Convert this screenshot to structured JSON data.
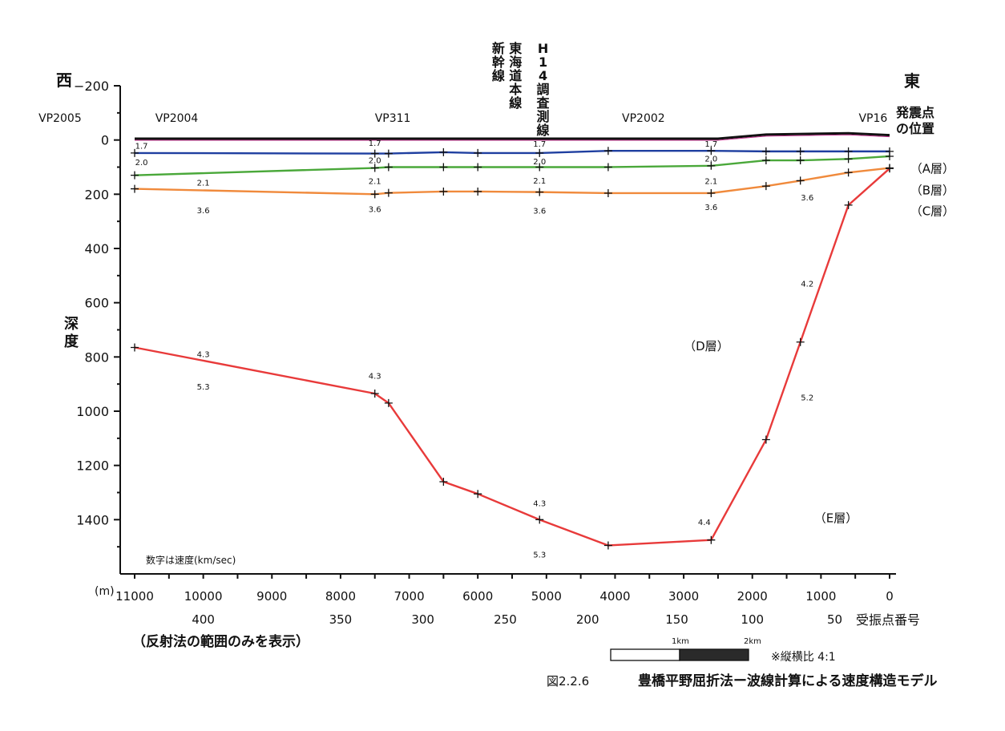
{
  "chart_data": {
    "type": "line",
    "title": "豊橋平野屈折法ー波線計算による速度構造モデル",
    "figure_number": "図2.2.6",
    "ylabel": "深度",
    "y_unit": "(m)",
    "ylim": [
      -200,
      1600
    ],
    "yticks": [
      -200,
      0,
      200,
      400,
      600,
      800,
      1000,
      1200,
      1400
    ],
    "xlim": [
      11000,
      0
    ],
    "xticks": [
      11000,
      10000,
      9000,
      8000,
      7000,
      6000,
      5000,
      4000,
      3000,
      2000,
      1000,
      0
    ],
    "receiver_ticks": [
      {
        "label": "400",
        "x": 10000
      },
      {
        "label": "350",
        "x": 8000
      },
      {
        "label": "300",
        "x": 6800
      },
      {
        "label": "250",
        "x": 5600
      },
      {
        "label": "200",
        "x": 4400
      },
      {
        "label": "150",
        "x": 3100
      },
      {
        "label": "100",
        "x": 2000
      },
      {
        "label": "50",
        "x": 800
      }
    ],
    "receiver_label": "受振点番号",
    "x_note": "（反射法の範囲のみを表示）",
    "west_label": "西",
    "east_label": "東",
    "shot_point_label": [
      "発震点",
      "の位置"
    ],
    "shot_points": [
      {
        "label": "VP2005",
        "x": 12400
      },
      {
        "label": "VP2004",
        "x": 10700
      },
      {
        "label": "VP311",
        "x": 7500
      },
      {
        "label": "VP2002",
        "x": 3900
      },
      {
        "label": "VP16",
        "x": 450
      }
    ],
    "crossings": [
      {
        "label": "新幹線",
        "x": 5700
      },
      {
        "label": "東海道本線",
        "x": 5450
      },
      {
        "label": "H14調査測線",
        "x": 5050
      }
    ],
    "series": [
      {
        "name": "surface",
        "color": "#111111",
        "x": [
          11000,
          7500,
          6500,
          5100,
          2500,
          1800,
          600,
          0
        ],
        "y": [
          -5,
          -5,
          -5,
          -5,
          -5,
          -20,
          -25,
          -18
        ]
      },
      {
        "name": "A",
        "color": "#1f3fa0",
        "x": [
          11000,
          7500,
          7300,
          6500,
          6000,
          5100,
          4100,
          2600,
          1800,
          1300,
          600,
          0
        ],
        "y": [
          48,
          50,
          50,
          45,
          48,
          48,
          40,
          40,
          42,
          42,
          42,
          42
        ]
      },
      {
        "name": "B",
        "color": "#4aa83a",
        "x": [
          11000,
          7500,
          7300,
          6500,
          6000,
          5100,
          4100,
          2600,
          1800,
          1300,
          600,
          0
        ],
        "y": [
          130,
          103,
          100,
          100,
          100,
          100,
          100,
          95,
          75,
          75,
          70,
          60
        ]
      },
      {
        "name": "C",
        "color": "#f08a3c",
        "x": [
          11000,
          7500,
          7300,
          6500,
          6000,
          5100,
          4100,
          2600,
          1800,
          1300,
          600,
          0
        ],
        "y": [
          180,
          200,
          195,
          190,
          190,
          192,
          196,
          196,
          170,
          150,
          120,
          103
        ]
      },
      {
        "name": "D",
        "color": "#e83a3a",
        "x": [
          11000,
          7500,
          7300,
          6500,
          6000,
          5100,
          4100,
          2600,
          1800,
          1300,
          600,
          0
        ],
        "y": [
          765,
          935,
          970,
          1260,
          1305,
          1400,
          1495,
          1475,
          1105,
          745,
          240,
          105
        ]
      }
    ],
    "layer_labels": [
      {
        "text": "（A層）",
        "x": -300,
        "y": 120
      },
      {
        "text": "（B層）",
        "x": -300,
        "y": 200
      },
      {
        "text": "（C層）",
        "x": -300,
        "y": 278
      },
      {
        "text": "（D層）",
        "x": 3000,
        "y": 775
      },
      {
        "text": "（E層）",
        "x": 1100,
        "y": 1410
      }
    ],
    "velocity_labels": [
      {
        "text": "1.7",
        "x": 10900,
        "y": 32
      },
      {
        "text": "1.7",
        "x": 7500,
        "y": 22
      },
      {
        "text": "1.7",
        "x": 5100,
        "y": 25
      },
      {
        "text": "1.7",
        "x": 2600,
        "y": 25
      },
      {
        "text": "2.0",
        "x": 10900,
        "y": 92
      },
      {
        "text": "2.0",
        "x": 7500,
        "y": 85
      },
      {
        "text": "2.0",
        "x": 5100,
        "y": 90
      },
      {
        "text": "2.0",
        "x": 2600,
        "y": 80
      },
      {
        "text": "2.1",
        "x": 10000,
        "y": 168
      },
      {
        "text": "2.1",
        "x": 7500,
        "y": 162
      },
      {
        "text": "2.1",
        "x": 5100,
        "y": 160
      },
      {
        "text": "2.1",
        "x": 2600,
        "y": 162
      },
      {
        "text": "3.6",
        "x": 10000,
        "y": 270
      },
      {
        "text": "3.6",
        "x": 7500,
        "y": 265
      },
      {
        "text": "3.6",
        "x": 5100,
        "y": 272
      },
      {
        "text": "3.6",
        "x": 2600,
        "y": 258
      },
      {
        "text": "3.6",
        "x": 1200,
        "y": 222
      },
      {
        "text": "4.2",
        "x": 1200,
        "y": 540
      },
      {
        "text": "4.3",
        "x": 10000,
        "y": 800
      },
      {
        "text": "5.3",
        "x": 10000,
        "y": 920
      },
      {
        "text": "4.3",
        "x": 7500,
        "y": 880
      },
      {
        "text": "5.2",
        "x": 1200,
        "y": 960
      },
      {
        "text": "4.3",
        "x": 5100,
        "y": 1350
      },
      {
        "text": "5.3",
        "x": 5100,
        "y": 1540
      },
      {
        "text": "4.4",
        "x": 2700,
        "y": 1420
      }
    ],
    "velocity_note": "数字は速度(km/sec)",
    "scale_bar": {
      "labels": [
        "1km",
        "2km"
      ]
    },
    "aspect_note": "※縦横比 4:1"
  }
}
